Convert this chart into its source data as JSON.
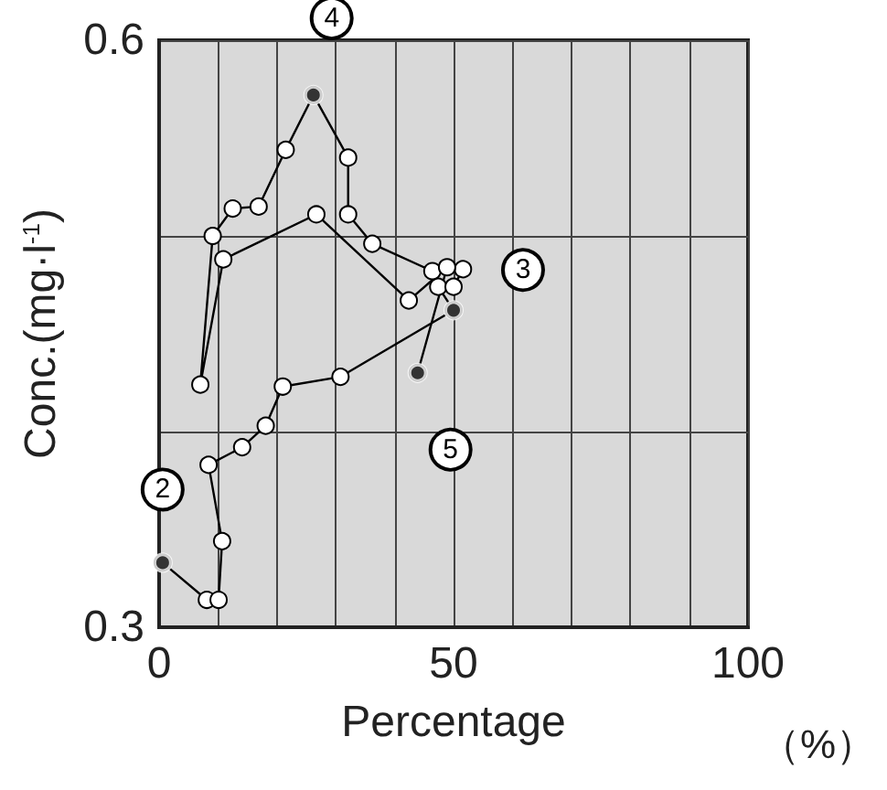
{
  "chart_data": {
    "type": "line",
    "xlabel": "Percentage",
    "ylabel": "Conc.(mg·l$^{-1}$)",
    "xlim": [
      0,
      100
    ],
    "ylim": [
      0.3,
      0.6
    ],
    "xticks": [
      0,
      {
        "value": 10,
        "label": null
      },
      {
        "value": 20,
        "label": null
      },
      {
        "value": 30,
        "label": null
      },
      {
        "value": 40,
        "label": null
      },
      50,
      {
        "value": 60,
        "label": null
      },
      {
        "value": 70,
        "label": null
      },
      {
        "value": 80,
        "label": null
      },
      {
        "value": 90,
        "label": null
      },
      100
    ],
    "yticks": [
      0.3,
      {
        "value": 0.4,
        "label": null
      },
      {
        "value": 0.5,
        "label": null
      },
      0.6
    ],
    "grid": true,
    "marker": "circle",
    "line_style": "solid",
    "series": [
      {
        "color": "#000000",
        "x": [
          0.6,
          8.1,
          10.1,
          10.7,
          8.4,
          14.1,
          18.1,
          21.0,
          30.8,
          50.0,
          47.4,
          50.0,
          51.6,
          46.4,
          36.2,
          32.1,
          32.1,
          26.2,
          21.5,
          16.9,
          12.5,
          9.1,
          7.0,
          10.9,
          26.7,
          42.4,
          48.9,
          43.9
        ],
        "values": [
          0.333,
          0.314,
          0.314,
          0.344,
          0.383,
          0.392,
          0.403,
          0.423,
          0.428,
          0.462,
          0.474,
          0.474,
          0.483,
          0.482,
          0.496,
          0.511,
          0.54,
          0.572,
          0.544,
          0.515,
          0.514,
          0.5,
          0.424,
          0.488,
          0.511,
          0.467,
          0.484,
          0.43
        ]
      },
      {
        "type": "scatter",
        "color": "#000000",
        "x": [
          0.6,
          50.0,
          26.2,
          43.9
        ],
        "values": [
          0.333,
          0.462,
          0.572,
          0.43
        ]
      }
    ],
    "annotations": [
      {
        "text": "2",
        "x": 0.6,
        "y": 0.333
      },
      {
        "text": "3",
        "x": 50.0,
        "y": 0.462
      },
      {
        "text": "4",
        "x": 26.2,
        "y": 0.572
      },
      {
        "text": "5",
        "x": 43.9,
        "y": 0.43
      },
      "（%）"
    ]
  }
}
